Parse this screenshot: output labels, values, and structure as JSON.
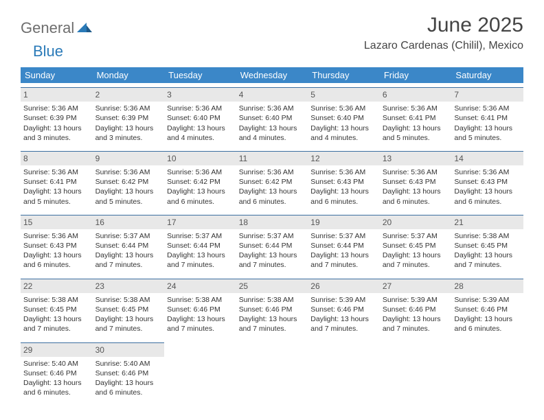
{
  "logo": {
    "general": "General",
    "blue": "Blue"
  },
  "title": "June 2025",
  "location": "Lazaro Cardenas (Chilil), Mexico",
  "colors": {
    "header_bg": "#3b87c8",
    "header_text": "#ffffff",
    "daynum_bg": "#e8e8e8",
    "daynum_border": "#3b6ea0",
    "body_text": "#333333",
    "title_text": "#444444",
    "logo_gray": "#6e6e6e",
    "logo_blue": "#2a7ab8"
  },
  "weekdays": [
    "Sunday",
    "Monday",
    "Tuesday",
    "Wednesday",
    "Thursday",
    "Friday",
    "Saturday"
  ],
  "weeks": [
    [
      {
        "n": "1",
        "sr": "5:36 AM",
        "ss": "6:39 PM",
        "dl": "13 hours and 3 minutes."
      },
      {
        "n": "2",
        "sr": "5:36 AM",
        "ss": "6:39 PM",
        "dl": "13 hours and 3 minutes."
      },
      {
        "n": "3",
        "sr": "5:36 AM",
        "ss": "6:40 PM",
        "dl": "13 hours and 4 minutes."
      },
      {
        "n": "4",
        "sr": "5:36 AM",
        "ss": "6:40 PM",
        "dl": "13 hours and 4 minutes."
      },
      {
        "n": "5",
        "sr": "5:36 AM",
        "ss": "6:40 PM",
        "dl": "13 hours and 4 minutes."
      },
      {
        "n": "6",
        "sr": "5:36 AM",
        "ss": "6:41 PM",
        "dl": "13 hours and 5 minutes."
      },
      {
        "n": "7",
        "sr": "5:36 AM",
        "ss": "6:41 PM",
        "dl": "13 hours and 5 minutes."
      }
    ],
    [
      {
        "n": "8",
        "sr": "5:36 AM",
        "ss": "6:41 PM",
        "dl": "13 hours and 5 minutes."
      },
      {
        "n": "9",
        "sr": "5:36 AM",
        "ss": "6:42 PM",
        "dl": "13 hours and 5 minutes."
      },
      {
        "n": "10",
        "sr": "5:36 AM",
        "ss": "6:42 PM",
        "dl": "13 hours and 6 minutes."
      },
      {
        "n": "11",
        "sr": "5:36 AM",
        "ss": "6:42 PM",
        "dl": "13 hours and 6 minutes."
      },
      {
        "n": "12",
        "sr": "5:36 AM",
        "ss": "6:43 PM",
        "dl": "13 hours and 6 minutes."
      },
      {
        "n": "13",
        "sr": "5:36 AM",
        "ss": "6:43 PM",
        "dl": "13 hours and 6 minutes."
      },
      {
        "n": "14",
        "sr": "5:36 AM",
        "ss": "6:43 PM",
        "dl": "13 hours and 6 minutes."
      }
    ],
    [
      {
        "n": "15",
        "sr": "5:36 AM",
        "ss": "6:43 PM",
        "dl": "13 hours and 6 minutes."
      },
      {
        "n": "16",
        "sr": "5:37 AM",
        "ss": "6:44 PM",
        "dl": "13 hours and 7 minutes."
      },
      {
        "n": "17",
        "sr": "5:37 AM",
        "ss": "6:44 PM",
        "dl": "13 hours and 7 minutes."
      },
      {
        "n": "18",
        "sr": "5:37 AM",
        "ss": "6:44 PM",
        "dl": "13 hours and 7 minutes."
      },
      {
        "n": "19",
        "sr": "5:37 AM",
        "ss": "6:44 PM",
        "dl": "13 hours and 7 minutes."
      },
      {
        "n": "20",
        "sr": "5:37 AM",
        "ss": "6:45 PM",
        "dl": "13 hours and 7 minutes."
      },
      {
        "n": "21",
        "sr": "5:38 AM",
        "ss": "6:45 PM",
        "dl": "13 hours and 7 minutes."
      }
    ],
    [
      {
        "n": "22",
        "sr": "5:38 AM",
        "ss": "6:45 PM",
        "dl": "13 hours and 7 minutes."
      },
      {
        "n": "23",
        "sr": "5:38 AM",
        "ss": "6:45 PM",
        "dl": "13 hours and 7 minutes."
      },
      {
        "n": "24",
        "sr": "5:38 AM",
        "ss": "6:46 PM",
        "dl": "13 hours and 7 minutes."
      },
      {
        "n": "25",
        "sr": "5:38 AM",
        "ss": "6:46 PM",
        "dl": "13 hours and 7 minutes."
      },
      {
        "n": "26",
        "sr": "5:39 AM",
        "ss": "6:46 PM",
        "dl": "13 hours and 7 minutes."
      },
      {
        "n": "27",
        "sr": "5:39 AM",
        "ss": "6:46 PM",
        "dl": "13 hours and 7 minutes."
      },
      {
        "n": "28",
        "sr": "5:39 AM",
        "ss": "6:46 PM",
        "dl": "13 hours and 6 minutes."
      }
    ],
    [
      {
        "n": "29",
        "sr": "5:40 AM",
        "ss": "6:46 PM",
        "dl": "13 hours and 6 minutes."
      },
      {
        "n": "30",
        "sr": "5:40 AM",
        "ss": "6:46 PM",
        "dl": "13 hours and 6 minutes."
      },
      null,
      null,
      null,
      null,
      null
    ]
  ],
  "labels": {
    "sunrise": "Sunrise:",
    "sunset": "Sunset:",
    "daylight": "Daylight:"
  }
}
